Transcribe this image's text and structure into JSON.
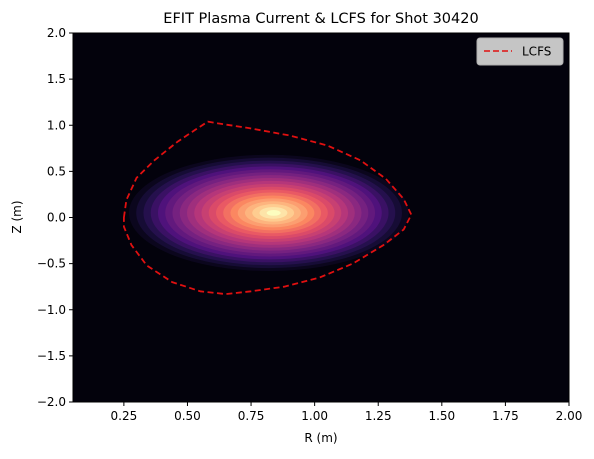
{
  "chart_data": {
    "type": "heatmap",
    "title": "EFIT Plasma Current & LCFS for Shot 30420",
    "xlabel": "R (m)",
    "ylabel": "Z (m)",
    "xlim": [
      0.05,
      2.0
    ],
    "ylim": [
      -2.0,
      2.0
    ],
    "xticks": [
      "0.25",
      "0.50",
      "0.75",
      "1.00",
      "1.25",
      "1.50",
      "1.75",
      "2.00"
    ],
    "xtick_values": [
      0.25,
      0.5,
      0.75,
      1.0,
      1.25,
      1.5,
      1.75,
      2.0
    ],
    "yticks": [
      "2.0",
      "1.5",
      "1.0",
      "0.5",
      "0.0",
      "−0.5",
      "−1.0",
      "−1.5",
      "−2.0"
    ],
    "ytick_values": [
      2.0,
      1.5,
      1.0,
      0.5,
      0.0,
      -0.5,
      -1.0,
      -1.5,
      -2.0
    ],
    "colormap": "magma",
    "grid": false,
    "current_density": {
      "peak_R": 0.84,
      "peak_Z": 0.05,
      "extent_R": [
        0.27,
        1.37
      ],
      "extent_Z": [
        -0.58,
        0.68
      ],
      "levels": 20
    },
    "series": [
      {
        "name": "LCFS",
        "style": "dashed",
        "color": "#e01010",
        "points": [
          [
            0.25,
            0.0
          ],
          [
            0.26,
            0.19
          ],
          [
            0.3,
            0.43
          ],
          [
            0.37,
            0.62
          ],
          [
            0.46,
            0.82
          ],
          [
            0.53,
            0.95
          ],
          [
            0.58,
            1.04
          ],
          [
            0.62,
            1.02
          ],
          [
            0.74,
            0.97
          ],
          [
            0.9,
            0.89
          ],
          [
            1.05,
            0.78
          ],
          [
            1.18,
            0.62
          ],
          [
            1.28,
            0.42
          ],
          [
            1.35,
            0.2
          ],
          [
            1.38,
            0.03
          ],
          [
            1.35,
            -0.13
          ],
          [
            1.27,
            -0.3
          ],
          [
            1.15,
            -0.5
          ],
          [
            1.02,
            -0.65
          ],
          [
            0.88,
            -0.75
          ],
          [
            0.75,
            -0.8
          ],
          [
            0.65,
            -0.83
          ],
          [
            0.55,
            -0.8
          ],
          [
            0.44,
            -0.7
          ],
          [
            0.34,
            -0.52
          ],
          [
            0.28,
            -0.3
          ],
          [
            0.25,
            -0.1
          ],
          [
            0.25,
            0.0
          ]
        ]
      }
    ],
    "legend": {
      "position": "top-right",
      "entries": [
        "LCFS"
      ]
    },
    "colors": {
      "background": "#03020c",
      "lcfs": "#e01010"
    }
  }
}
